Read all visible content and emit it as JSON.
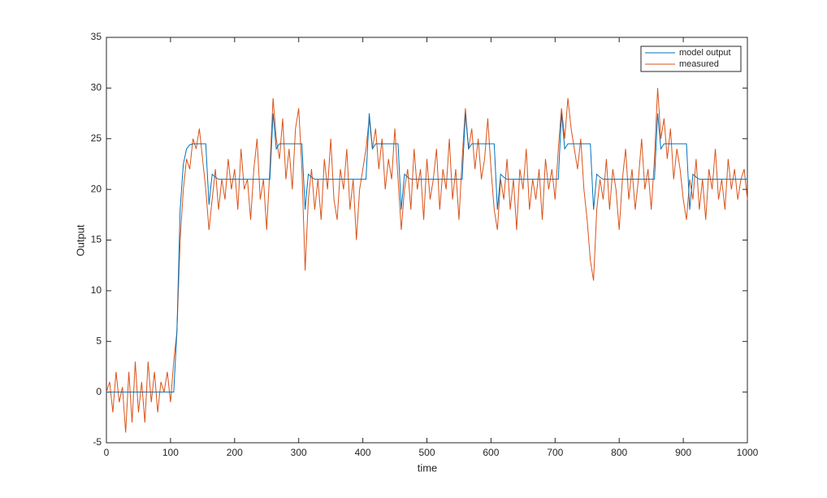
{
  "chart_data": {
    "type": "line",
    "xlabel": "time",
    "ylabel": "Output",
    "x": [
      0,
      5,
      10,
      15,
      20,
      25,
      30,
      35,
      40,
      45,
      50,
      55,
      60,
      65,
      70,
      75,
      80,
      85,
      90,
      95,
      100,
      105,
      110,
      115,
      120,
      125,
      130,
      135,
      140,
      145,
      150,
      155,
      160,
      165,
      170,
      175,
      180,
      185,
      190,
      195,
      200,
      205,
      210,
      215,
      220,
      225,
      230,
      235,
      240,
      245,
      250,
      255,
      260,
      265,
      270,
      275,
      280,
      285,
      290,
      295,
      300,
      305,
      310,
      315,
      320,
      325,
      330,
      335,
      340,
      345,
      350,
      355,
      360,
      365,
      370,
      375,
      380,
      385,
      390,
      395,
      400,
      405,
      410,
      415,
      420,
      425,
      430,
      435,
      440,
      445,
      450,
      455,
      460,
      465,
      470,
      475,
      480,
      485,
      490,
      495,
      500,
      505,
      510,
      515,
      520,
      525,
      530,
      535,
      540,
      545,
      550,
      555,
      560,
      565,
      570,
      575,
      580,
      585,
      590,
      595,
      600,
      605,
      610,
      615,
      620,
      625,
      630,
      635,
      640,
      645,
      650,
      655,
      660,
      665,
      670,
      675,
      680,
      685,
      690,
      695,
      700,
      705,
      710,
      715,
      720,
      725,
      730,
      735,
      740,
      745,
      750,
      755,
      760,
      765,
      770,
      775,
      780,
      785,
      790,
      795,
      800,
      805,
      810,
      815,
      820,
      825,
      830,
      835,
      840,
      845,
      850,
      855,
      860,
      865,
      870,
      875,
      880,
      885,
      890,
      895,
      900,
      905,
      910,
      915,
      920,
      925,
      930,
      935,
      940,
      945,
      950,
      955,
      960,
      965,
      970,
      975,
      980,
      985,
      990,
      995,
      1000
    ],
    "series": [
      {
        "name": "model output",
        "color": "#0072bd",
        "values": [
          0,
          0,
          0,
          0,
          0,
          0,
          0,
          0,
          0,
          0,
          0,
          0,
          0,
          0,
          0,
          0,
          0,
          0,
          0,
          0,
          0,
          0,
          6,
          18,
          22.5,
          24,
          24.4,
          24.5,
          24.5,
          24.5,
          24.5,
          24.5,
          18.5,
          21.5,
          21.2,
          21,
          21,
          21,
          21,
          21,
          21,
          21,
          21,
          21,
          21,
          21,
          21,
          21,
          21,
          21,
          21,
          21,
          27.5,
          24,
          24.5,
          24.5,
          24.5,
          24.5,
          24.5,
          24.5,
          24.5,
          24.5,
          18,
          21.5,
          21.2,
          21,
          21,
          21,
          21,
          21,
          21,
          21,
          21,
          21,
          21,
          21,
          21,
          21,
          21,
          21,
          21,
          21,
          27.5,
          24,
          24.5,
          24.5,
          24.5,
          24.5,
          24.5,
          24.5,
          24.5,
          24.5,
          18,
          21.5,
          21.2,
          21,
          21,
          21,
          21,
          21,
          21,
          21,
          21,
          21,
          21,
          21,
          21,
          21,
          21,
          21,
          21,
          21,
          27.5,
          24,
          24.5,
          24.5,
          24.5,
          24.5,
          24.5,
          24.5,
          24.5,
          24.5,
          18,
          21.5,
          21.2,
          21,
          21,
          21,
          21,
          21,
          21,
          21,
          21,
          21,
          21,
          21,
          21,
          21,
          21,
          21,
          21,
          21,
          27.5,
          24,
          24.5,
          24.5,
          24.5,
          24.5,
          24.5,
          24.5,
          24.5,
          24.5,
          18,
          21.5,
          21.2,
          21,
          21,
          21,
          21,
          21,
          21,
          21,
          21,
          21,
          21,
          21,
          21,
          21,
          21,
          21,
          21,
          21,
          27.5,
          24,
          24.5,
          24.5,
          24.5,
          24.5,
          24.5,
          24.5,
          24.5,
          24.5,
          18,
          21.5,
          21.2,
          21,
          21,
          21,
          21,
          21,
          21,
          21,
          21,
          21,
          21,
          21,
          21,
          21,
          21,
          21,
          21
        ]
      },
      {
        "name": "measured",
        "color": "#d95319",
        "values": [
          0,
          1,
          -2,
          2,
          -1,
          0.5,
          -4,
          2,
          -3,
          3,
          -2,
          1,
          -3,
          3,
          -1,
          2,
          -2,
          1,
          0,
          2,
          -1,
          3,
          6,
          15,
          20,
          23,
          22,
          25,
          24,
          26,
          23,
          20,
          16,
          19,
          22,
          18,
          21,
          19,
          23,
          20,
          22,
          18,
          24,
          20,
          21,
          17,
          22,
          25,
          19,
          21,
          16,
          22,
          29,
          25,
          23,
          27,
          21,
          24,
          20,
          26,
          28,
          22,
          12,
          19,
          22,
          18,
          21,
          17,
          23,
          20,
          25,
          19,
          17,
          22,
          20,
          24,
          18,
          21,
          15,
          20,
          22,
          24,
          27,
          24,
          26,
          22,
          25,
          20,
          23,
          21,
          26,
          21,
          16,
          20,
          22,
          18,
          24,
          20,
          22,
          17,
          23,
          19,
          21,
          24,
          18,
          22,
          20,
          25,
          19,
          22,
          17,
          23,
          28,
          24,
          26,
          22,
          25,
          21,
          23,
          27,
          22,
          18,
          16,
          21,
          19,
          23,
          18,
          21,
          16,
          22,
          20,
          24,
          18,
          21,
          19,
          22,
          17,
          23,
          20,
          22,
          19,
          24,
          28,
          25,
          29,
          26,
          24,
          22,
          25,
          20,
          17,
          13,
          11,
          18,
          21,
          19,
          23,
          18,
          22,
          20,
          16,
          21,
          24,
          19,
          22,
          18,
          21,
          25,
          20,
          22,
          18,
          23,
          30,
          25,
          27,
          23,
          26,
          21,
          24,
          22,
          19,
          17,
          21,
          19,
          23,
          18,
          21,
          17,
          22,
          20,
          24,
          19,
          21,
          18,
          23,
          20,
          22,
          19,
          21,
          22,
          19
        ]
      }
    ],
    "xlim": [
      0,
      1000
    ],
    "xticks": [
      0,
      100,
      200,
      300,
      400,
      500,
      600,
      700,
      800,
      900,
      1000
    ],
    "ylim": [
      -5,
      35
    ],
    "yticks": [
      -5,
      0,
      5,
      10,
      15,
      20,
      25,
      30,
      35
    ],
    "legend": "upper right",
    "grid": false
  }
}
